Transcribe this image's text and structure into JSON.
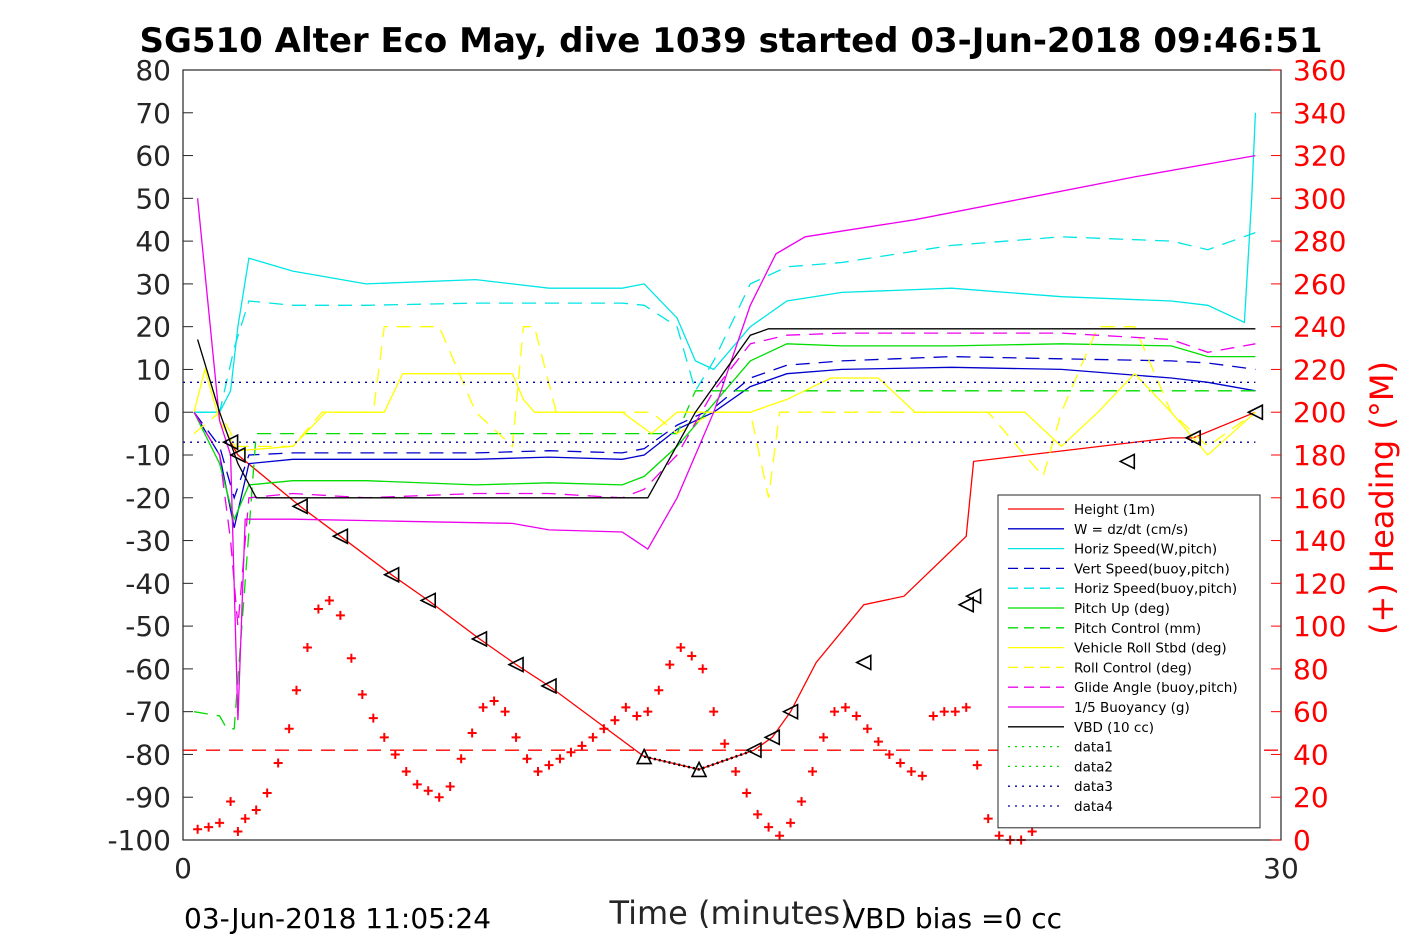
{
  "chart_data": {
    "type": "line",
    "title": "SG510 Alter Eco May, dive 1039 started 03-Jun-2018 09:46:51",
    "xlabel": "Time (minutes)",
    "ylabel_right": "(+) Heading (°M)",
    "xlim": [
      0,
      30
    ],
    "ylim_left": [
      -100,
      80
    ],
    "ylim_right": [
      0,
      360
    ],
    "xticks": [
      "0",
      "30"
    ],
    "yticks_left": [
      "80",
      "70",
      "60",
      "50",
      "40",
      "30",
      "20",
      "10",
      "0",
      "-10",
      "-20",
      "-30",
      "-40",
      "-50",
      "-60",
      "-70",
      "-80",
      "-90",
      "-100"
    ],
    "yticks_right": [
      "360",
      "340",
      "320",
      "300",
      "280",
      "260",
      "240",
      "220",
      "200",
      "180",
      "160",
      "140",
      "120",
      "100",
      "80",
      "60",
      "40",
      "20",
      "0"
    ],
    "grid": false,
    "legend_position": "bottom-right",
    "footer_left": "03-Jun-2018 11:05:24",
    "footer_right": "VBD bias =0 cc",
    "series": [
      {
        "name": "Height (1m)",
        "color": "#ff0000",
        "style": "solid",
        "x": [
          1.3,
          1.5,
          3.2,
          4.3,
          5.7,
          6.7,
          8.1,
          9.1,
          10.0,
          12.6,
          14.1,
          15.6,
          16.1,
          16.6,
          17.3,
          18.6,
          19.7,
          21.4,
          21.6,
          27.0,
          27.6,
          29.3
        ],
        "y": [
          -7,
          -10,
          -22,
          -29,
          -38,
          -44,
          -53,
          -59,
          -64,
          -80.5,
          -83.5,
          -79,
          -76,
          -70,
          -58.5,
          -45,
          -43,
          -29,
          -11.5,
          -6,
          -6,
          0
        ]
      },
      {
        "name": "W = dz/dt (cm/s)",
        "color": "#0000cc",
        "style": "solid",
        "x": [
          0.3,
          1.0,
          1.4,
          1.8,
          3.0,
          5.0,
          8.0,
          10.0,
          12.0,
          12.6,
          13.5,
          14.5,
          15.5,
          16.5,
          18.0,
          21.0,
          24.0,
          27.0,
          28.0,
          29.3
        ],
        "y": [
          0,
          -10,
          -27,
          -12,
          -11,
          -11,
          -11,
          -10.5,
          -11,
          -10,
          -4,
          0,
          6,
          9,
          10,
          10.5,
          10,
          8,
          7,
          5
        ]
      },
      {
        "name": "Horiz Speed(W,pitch)",
        "color": "#00e5e5",
        "style": "solid",
        "x": [
          0.3,
          1.0,
          1.3,
          1.5,
          1.8,
          3.0,
          5.0,
          8.0,
          10.0,
          12.0,
          12.6,
          13.5,
          14.0,
          14.5,
          15.5,
          16.5,
          18.0,
          21.0,
          24.0,
          27.0,
          28.0,
          29.0,
          29.2,
          29.3
        ],
        "y": [
          0,
          0,
          5,
          20,
          36,
          33,
          30,
          31,
          29,
          29,
          30,
          22,
          12,
          10,
          20,
          26,
          28,
          29,
          27,
          26,
          25,
          21,
          50,
          70
        ]
      },
      {
        "name": "Vert Speed(buoy,pitch)",
        "color": "#0000cc",
        "style": "dashed",
        "x": [
          0.3,
          1.0,
          1.4,
          1.8,
          3.0,
          5.0,
          8.0,
          10.0,
          12.0,
          12.6,
          13.5,
          14.5,
          15.5,
          16.5,
          18.0,
          21.0,
          24.0,
          27.0,
          28.0,
          29.3
        ],
        "y": [
          0,
          -8,
          -20,
          -10,
          -9.5,
          -9.5,
          -9.5,
          -9,
          -9.5,
          -8.5,
          -3,
          1,
          8,
          11,
          12,
          13,
          12.5,
          12,
          11.5,
          10
        ]
      },
      {
        "name": "Horiz Speed(buoy,pitch)",
        "color": "#00e5e5",
        "style": "dashed",
        "x": [
          0.3,
          1.0,
          1.4,
          1.8,
          3.0,
          5.0,
          8.0,
          10.0,
          12.0,
          12.6,
          13.5,
          14.0,
          14.5,
          15.5,
          16.5,
          18.0,
          21.0,
          24.0,
          27.0,
          28.0,
          29.3
        ],
        "y": [
          0,
          0,
          15,
          26,
          25,
          25,
          25.5,
          25.5,
          25.5,
          25,
          20,
          5,
          12,
          30,
          34,
          35,
          39,
          41,
          40,
          38,
          42
        ]
      },
      {
        "name": "Pitch Up (deg)",
        "color": "#00dd00",
        "style": "solid",
        "x": [
          0.3,
          1.0,
          1.4,
          1.8,
          3.0,
          5.0,
          8.0,
          10.0,
          12.0,
          12.6,
          13.5,
          14.5,
          15.5,
          16.5,
          18.0,
          21.0,
          24.0,
          27.0,
          28.0,
          29.3
        ],
        "y": [
          0,
          -12,
          -25,
          -17,
          -16,
          -16,
          -17,
          -16.5,
          -17,
          -15,
          -8,
          2,
          12,
          16,
          15.5,
          15.5,
          16,
          15.5,
          13,
          13
        ]
      },
      {
        "name": "Pitch Control (mm)",
        "color": "#00dd00",
        "style": "dashed",
        "x": [
          0.3,
          1.0,
          1.2,
          1.4,
          2.0,
          5.0,
          8.0,
          10.0,
          12.0,
          12.8,
          13.5,
          14.0,
          14.5,
          15.5,
          18.0,
          21.0,
          24.0,
          27.0,
          29.3
        ],
        "y": [
          -70,
          -71,
          -74,
          -74,
          -5,
          -5,
          -5,
          -5,
          -5,
          -5,
          -5,
          5,
          5,
          5,
          5,
          5,
          5,
          5,
          5
        ]
      },
      {
        "name": "Vehicle Roll Stbd (deg)",
        "color": "#ffff00",
        "style": "solid",
        "x": [
          0.3,
          0.6,
          1.0,
          1.5,
          3.0,
          3.9,
          4.3,
          5.5,
          6.0,
          6.3,
          9.0,
          9.3,
          9.6,
          10.2,
          12.0,
          12.8,
          13.5,
          14.5,
          15.5,
          16.5,
          17.7,
          18.0,
          19.0,
          20.0,
          22.0,
          23.0,
          24.0,
          25.0,
          26.0,
          27.0,
          28.0,
          29.3
        ],
        "y": [
          0,
          10,
          -2,
          -9,
          -8,
          0,
          0,
          0,
          9,
          9,
          9,
          3,
          0,
          0,
          0,
          -5,
          0,
          0,
          0,
          3,
          8,
          8,
          8,
          0,
          0,
          0,
          -8,
          0,
          9,
          0,
          -10,
          0
        ]
      },
      {
        "name": "Roll Control (deg)",
        "color": "#ffff00",
        "style": "dashed",
        "x": [
          0.3,
          1.0,
          1.5,
          3.0,
          3.8,
          4.1,
          5.2,
          5.5,
          7.0,
          8.0,
          9.0,
          9.3,
          9.6,
          10.2,
          12.0,
          12.8,
          13.5,
          14.5,
          15.5,
          16.0,
          16.3,
          18.0,
          20.0,
          22.0,
          23.5,
          24.0,
          25.0,
          26.0,
          27.0,
          28.0,
          29.3
        ],
        "y": [
          -5,
          0,
          -8,
          -8,
          0,
          0,
          0,
          20,
          20,
          0,
          -8,
          20,
          20,
          0,
          0,
          0,
          -5,
          0,
          0,
          -20,
          0,
          0,
          0,
          0,
          -15,
          0,
          20,
          20,
          0,
          -8,
          0
        ]
      },
      {
        "name": "Glide Angle (buoy,pitch)",
        "color": "#ee00ee",
        "style": "dashed",
        "x": [
          0.3,
          1.0,
          1.3,
          1.5,
          1.8,
          3.0,
          5.0,
          8.0,
          10.0,
          12.0,
          12.6,
          13.5,
          14.5,
          15.5,
          16.5,
          18.0,
          21.0,
          24.0,
          27.0,
          28.0,
          29.3
        ],
        "y": [
          0,
          -10,
          -30,
          -50,
          -20,
          -19,
          -20,
          -19,
          -19,
          -20,
          -18,
          -10,
          5,
          16,
          18,
          18.5,
          18.5,
          18.5,
          17,
          14,
          16
        ]
      },
      {
        "name": "1/5 Buoyancy (g)",
        "color": "#ee00ee",
        "style": "solid",
        "x": [
          0.4,
          1.0,
          1.3,
          1.5,
          1.7,
          3.0,
          6.0,
          9.0,
          10.0,
          12.0,
          12.7,
          13.5,
          14.5,
          15.5,
          16.2,
          17.0,
          20.0,
          23.0,
          26.0,
          29.3
        ],
        "y": [
          50,
          -2,
          -10,
          -72,
          -25,
          -25,
          -25.5,
          -26,
          -27.5,
          -28,
          -32,
          -20,
          0,
          25,
          37,
          41,
          45,
          50,
          55,
          60
        ]
      },
      {
        "name": "VBD (10 cc)",
        "color": "#000000",
        "style": "solid",
        "x": [
          0.4,
          1.0,
          1.5,
          2.0,
          5.0,
          8.0,
          11.0,
          12.7,
          14.0,
          15.5,
          16.0,
          20.0,
          25.0,
          29.3
        ],
        "y": [
          17,
          0,
          -12,
          -20,
          -20,
          -20,
          -20,
          -20,
          0,
          18,
          19.5,
          19.5,
          19.5,
          19.5
        ]
      },
      {
        "name": "data1",
        "color": "#00dd00",
        "style": "dotted",
        "x": [],
        "y": []
      },
      {
        "name": "data2",
        "color": "#00dd00",
        "style": "dotted",
        "x": [],
        "y": []
      },
      {
        "name": "data3",
        "color": "#000099",
        "style": "dotted",
        "x": [
          0,
          29.3
        ],
        "y": [
          7,
          7
        ]
      },
      {
        "name": "data4",
        "color": "#000099",
        "style": "dotted",
        "x": [
          0,
          29.3
        ],
        "y": [
          -7,
          -7
        ]
      }
    ],
    "markers": {
      "color": "#000000",
      "triangles_left": {
        "x": [
          1.3,
          1.5,
          3.2,
          4.3,
          5.7,
          6.7,
          8.1,
          9.1,
          10.0,
          15.6,
          16.1,
          16.6,
          18.6,
          21.4,
          21.6,
          25.8,
          27.6,
          29.3
        ],
        "y": [
          -7,
          -10,
          -22,
          -29,
          -38,
          -44,
          -53,
          -59,
          -64,
          -79,
          -76,
          -70,
          -58.5,
          -45,
          -43,
          -11.5,
          -6,
          0
        ]
      },
      "triangles_up": {
        "x": [
          12.6,
          14.1
        ],
        "y": [
          -80.5,
          -83.5
        ]
      }
    },
    "heading": {
      "color": "#ff0000",
      "axis": "right",
      "mean_heading": 42,
      "x": [
        0.4,
        0.7,
        1.0,
        1.3,
        1.5,
        1.7,
        2.0,
        2.3,
        2.6,
        2.9,
        3.1,
        3.4,
        3.7,
        4.0,
        4.3,
        4.6,
        4.9,
        5.2,
        5.5,
        5.8,
        6.1,
        6.4,
        6.7,
        7.0,
        7.3,
        7.6,
        7.9,
        8.2,
        8.5,
        8.8,
        9.1,
        9.4,
        9.7,
        10.0,
        10.3,
        10.6,
        10.9,
        11.2,
        11.5,
        11.8,
        12.1,
        12.4,
        12.7,
        13.0,
        13.3,
        13.6,
        13.9,
        14.2,
        14.5,
        14.8,
        15.1,
        15.4,
        15.7,
        16.0,
        16.3,
        16.6,
        16.9,
        17.2,
        17.5,
        17.8,
        18.1,
        18.4,
        18.7,
        19.0,
        19.3,
        19.6,
        19.9,
        20.2,
        20.5,
        20.8,
        21.1,
        21.4,
        21.7,
        22.0,
        22.3,
        22.6,
        22.9,
        23.2,
        23.5,
        23.8,
        24.1,
        24.4,
        24.7,
        25.0,
        25.3,
        25.6,
        25.9,
        26.2,
        26.5,
        26.8,
        27.1,
        27.4,
        27.7,
        28.0,
        28.3,
        28.6,
        28.9,
        29.2
      ],
      "y": [
        5,
        6,
        8,
        18,
        4,
        10,
        14,
        22,
        36,
        52,
        70,
        90,
        108,
        112,
        105,
        85,
        68,
        57,
        48,
        40,
        32,
        26,
        23,
        20,
        25,
        38,
        50,
        62,
        65,
        60,
        48,
        38,
        32,
        35,
        38,
        41,
        44,
        48,
        52,
        56,
        62,
        58,
        60,
        70,
        82,
        90,
        86,
        80,
        60,
        45,
        32,
        22,
        12,
        6,
        2,
        8,
        18,
        32,
        48,
        60,
        62,
        58,
        52,
        46,
        40,
        36,
        32,
        30,
        58,
        60,
        60,
        62,
        35,
        10,
        2,
        0,
        0,
        4,
        12,
        22,
        35,
        50,
        65,
        75,
        80,
        82,
        80,
        75,
        68,
        60,
        50,
        42,
        38,
        45,
        55,
        62,
        58,
        52
      ]
    }
  }
}
